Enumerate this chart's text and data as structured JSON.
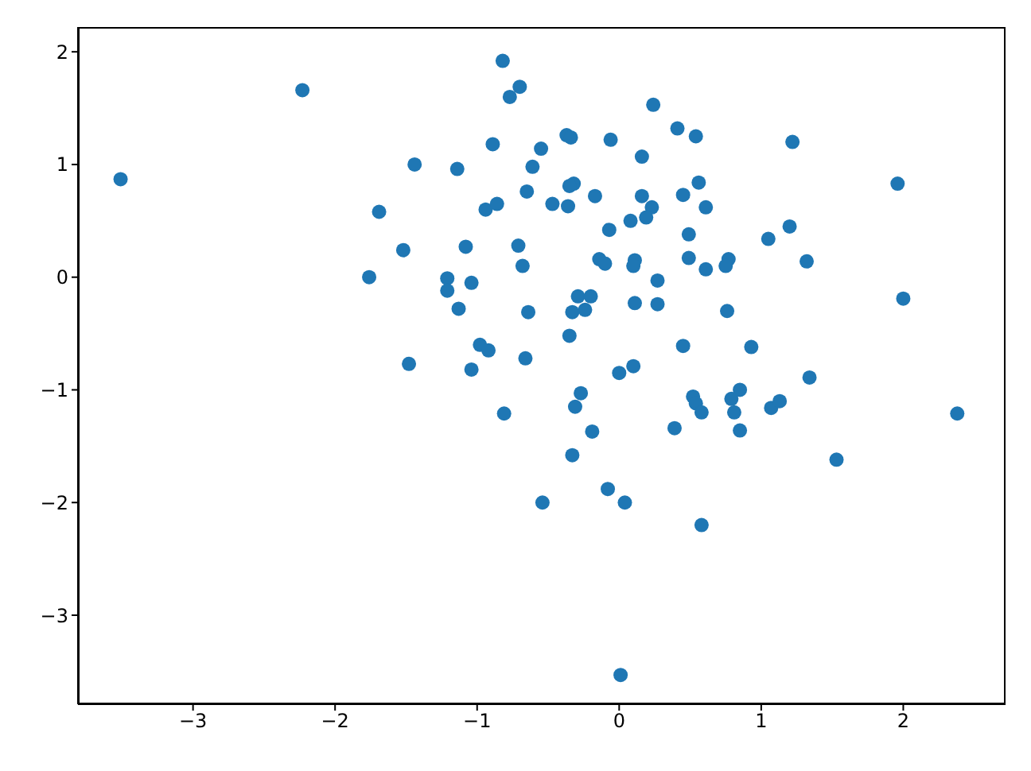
{
  "chart_data": {
    "type": "scatter",
    "marker": "circle",
    "grid": false,
    "legend": false,
    "xlim": [
      -3.81,
      2.72
    ],
    "ylim": [
      -3.79,
      2.22
    ],
    "xticks": [
      -3,
      -2,
      -1,
      0,
      1,
      2
    ],
    "yticks": [
      -3,
      -2,
      -1,
      0,
      1,
      2
    ],
    "series": [
      {
        "color": "#1f77b4",
        "x": [
          -0.82,
          -0.7,
          -0.77,
          0.24,
          0.41,
          -0.37,
          -0.34,
          -0.06,
          -0.89,
          -0.55,
          0.16,
          -1.44,
          -1.14,
          -0.61,
          0.45,
          -0.32,
          -0.35,
          -0.65,
          -0.17,
          0.16,
          0.23,
          0.19,
          0.08,
          -1.69,
          -0.94,
          -0.86,
          -0.47,
          -0.36,
          -0.07,
          -1.52,
          -1.08,
          -0.71,
          -0.68,
          -0.14,
          -0.1,
          0.11,
          0.1,
          0.54,
          1.22,
          0.56,
          0.61,
          1.96,
          0.49,
          1.2,
          1.05,
          0.49,
          0.77,
          0.75,
          0.61,
          1.32,
          0.27,
          -1.76,
          -1.21,
          -1.21,
          -1.04,
          -1.13,
          -0.64,
          -0.29,
          -0.2,
          -0.33,
          -0.24,
          0.11,
          0.27,
          -0.35,
          -0.98,
          -0.92,
          -1.48,
          -1.04,
          -0.66,
          0.0,
          0.1,
          0.45,
          -0.27,
          -0.31,
          -0.81,
          -0.19,
          0.39,
          -0.33,
          2.0,
          0.76,
          0.93,
          1.34,
          0.52,
          0.54,
          0.58,
          0.85,
          0.79,
          0.81,
          1.07,
          1.13,
          0.85,
          2.38,
          1.53,
          -3.51,
          -2.23,
          -0.54,
          -0.08,
          0.04,
          0.58,
          0.01
        ],
        "values": [
          1.92,
          1.69,
          1.6,
          1.53,
          1.32,
          1.26,
          1.24,
          1.22,
          1.18,
          1.14,
          1.07,
          1.0,
          0.96,
          0.98,
          0.73,
          0.83,
          0.81,
          0.76,
          0.72,
          0.72,
          0.62,
          0.53,
          0.5,
          0.58,
          0.6,
          0.65,
          0.65,
          0.63,
          0.42,
          0.24,
          0.27,
          0.28,
          0.1,
          0.16,
          0.12,
          0.15,
          0.1,
          1.25,
          1.2,
          0.84,
          0.62,
          0.83,
          0.38,
          0.45,
          0.34,
          0.17,
          0.16,
          0.1,
          0.07,
          0.14,
          -0.03,
          0.0,
          -0.01,
          -0.12,
          -0.05,
          -0.28,
          -0.31,
          -0.17,
          -0.17,
          -0.31,
          -0.29,
          -0.23,
          -0.24,
          -0.52,
          -0.6,
          -0.65,
          -0.77,
          -0.82,
          -0.72,
          -0.85,
          -0.79,
          -0.61,
          -1.03,
          -1.15,
          -1.21,
          -1.37,
          -1.34,
          -1.58,
          -0.19,
          -0.3,
          -0.62,
          -0.89,
          -1.06,
          -1.12,
          -1.2,
          -1.0,
          -1.08,
          -1.2,
          -1.16,
          -1.1,
          -1.36,
          -1.21,
          -1.62,
          0.87,
          1.66,
          -2.0,
          -1.88,
          -2.0,
          -2.2,
          -3.53
        ]
      }
    ]
  }
}
